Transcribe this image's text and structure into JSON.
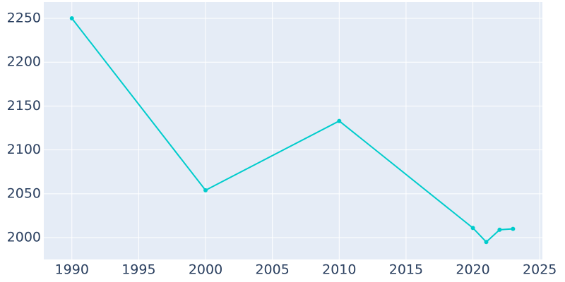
{
  "chart_data": {
    "type": "line",
    "x": [
      1990,
      2000,
      2010,
      2020,
      2021,
      2022,
      2023
    ],
    "series": [
      {
        "color": "#00cccc",
        "values": [
          2250,
          2054,
          2133,
          2011,
          1995,
          2009,
          2010
        ]
      }
    ],
    "xlim": [
      1987.9,
      2025.2
    ],
    "xticks": [
      1990,
      1995,
      2000,
      2005,
      2010,
      2015,
      2020,
      2025
    ],
    "ylim": [
      1975.1,
      2268.5
    ],
    "yticks": [
      2000,
      2050,
      2100,
      2150,
      2200,
      2250
    ],
    "grid": true
  }
}
